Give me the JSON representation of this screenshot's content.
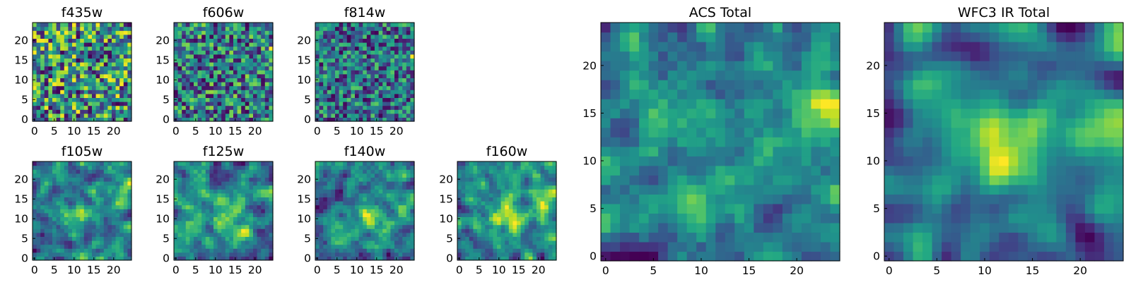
{
  "chart_data": [
    {
      "type": "heatmap",
      "title": "f435w",
      "colormap": "viridis",
      "xticks": [
        "0",
        "5",
        "10",
        "15",
        "20"
      ],
      "yticks": [
        "0",
        "5",
        "10",
        "15",
        "20"
      ],
      "xlim": [
        0,
        25
      ],
      "ylim": [
        0,
        25
      ],
      "grid_size": [
        25,
        25
      ],
      "seed": 11,
      "smooth": 0,
      "blobs": []
    },
    {
      "type": "heatmap",
      "title": "f606w",
      "colormap": "viridis",
      "xticks": [
        "0",
        "5",
        "10",
        "15",
        "20"
      ],
      "yticks": [
        "0",
        "5",
        "10",
        "15",
        "20"
      ],
      "xlim": [
        0,
        25
      ],
      "ylim": [
        0,
        25
      ],
      "grid_size": [
        25,
        25
      ],
      "seed": 23,
      "smooth": 0,
      "blobs": [
        {
          "x": 24,
          "y": 16,
          "amp": 0.45,
          "r": 1.5
        }
      ]
    },
    {
      "type": "heatmap",
      "title": "f814w",
      "colormap": "viridis",
      "xticks": [
        "0",
        "5",
        "10",
        "15",
        "20"
      ],
      "yticks": [
        "0",
        "5",
        "10",
        "15",
        "20"
      ],
      "xlim": [
        0,
        25
      ],
      "ylim": [
        0,
        25
      ],
      "grid_size": [
        25,
        25
      ],
      "seed": 37,
      "smooth": 0,
      "blobs": [
        {
          "x": 24,
          "y": 16,
          "amp": 0.4,
          "r": 1.5
        }
      ]
    },
    {
      "type": "heatmap",
      "title": "f105w",
      "colormap": "viridis",
      "xticks": [
        "0",
        "5",
        "10",
        "15",
        "20"
      ],
      "yticks": [
        "0",
        "5",
        "10",
        "15",
        "20"
      ],
      "xlim": [
        0,
        25
      ],
      "ylim": [
        0,
        25
      ],
      "grid_size": [
        25,
        25
      ],
      "seed": 41,
      "smooth": 1,
      "blobs": [
        {
          "x": 12,
          "y": 11,
          "amp": 0.35,
          "r": 3
        },
        {
          "x": 23,
          "y": 16,
          "amp": 0.4,
          "r": 2
        }
      ]
    },
    {
      "type": "heatmap",
      "title": "f125w",
      "colormap": "viridis",
      "xticks": [
        "0",
        "5",
        "10",
        "15",
        "20"
      ],
      "yticks": [
        "0",
        "5",
        "10",
        "15",
        "20"
      ],
      "xlim": [
        0,
        25
      ],
      "ylim": [
        0,
        25
      ],
      "grid_size": [
        25,
        25
      ],
      "seed": 53,
      "smooth": 1,
      "blobs": [
        {
          "x": 14,
          "y": 10,
          "amp": 0.4,
          "r": 3
        },
        {
          "x": 24,
          "y": 17,
          "amp": 0.35,
          "r": 2
        }
      ]
    },
    {
      "type": "heatmap",
      "title": "f140w",
      "colormap": "viridis",
      "xticks": [
        "0",
        "5",
        "10",
        "15",
        "20"
      ],
      "yticks": [
        "0",
        "5",
        "10",
        "15",
        "20"
      ],
      "xlim": [
        0,
        25
      ],
      "ylim": [
        0,
        25
      ],
      "grid_size": [
        25,
        25
      ],
      "seed": 67,
      "smooth": 1,
      "blobs": [
        {
          "x": 13,
          "y": 10,
          "amp": 0.4,
          "r": 3
        },
        {
          "x": 22,
          "y": 14,
          "amp": 0.35,
          "r": 2.5
        }
      ]
    },
    {
      "type": "heatmap",
      "title": "f160w",
      "colormap": "viridis",
      "xticks": [
        "0",
        "5",
        "10",
        "15",
        "20"
      ],
      "yticks": [
        "0",
        "5",
        "10",
        "15",
        "20"
      ],
      "xlim": [
        0,
        25
      ],
      "ylim": [
        0,
        25
      ],
      "grid_size": [
        25,
        25
      ],
      "seed": 79,
      "smooth": 1,
      "blobs": [
        {
          "x": 12,
          "y": 11,
          "amp": 0.5,
          "r": 3.5
        },
        {
          "x": 22,
          "y": 15,
          "amp": 0.35,
          "r": 2.5
        }
      ]
    },
    {
      "type": "heatmap",
      "title": "ACS Total",
      "colormap": "viridis",
      "xticks": [
        "0",
        "5",
        "10",
        "15",
        "20"
      ],
      "yticks": [
        "0",
        "5",
        "10",
        "15",
        "20"
      ],
      "xlim": [
        0,
        25
      ],
      "ylim": [
        0,
        25
      ],
      "grid_size": [
        25,
        25
      ],
      "seed": 97,
      "smooth": 1,
      "blobs": [
        {
          "x": 23,
          "y": 16,
          "amp": 0.35,
          "r": 2
        },
        {
          "x": 5,
          "y": 16,
          "amp": 0.2,
          "r": 2
        }
      ]
    },
    {
      "type": "heatmap",
      "title": "WFC3 IR Total",
      "colormap": "viridis",
      "xticks": [
        "0",
        "5",
        "10",
        "15",
        "20"
      ],
      "yticks": [
        "0",
        "5",
        "10",
        "15",
        "20"
      ],
      "xlim": [
        0,
        25
      ],
      "ylim": [
        0,
        25
      ],
      "grid_size": [
        25,
        25
      ],
      "seed": 113,
      "smooth": 2,
      "blobs": [
        {
          "x": 12,
          "y": 11,
          "amp": 0.55,
          "r": 3.5
        },
        {
          "x": 23,
          "y": 15,
          "amp": 0.45,
          "r": 2.5
        },
        {
          "x": 5,
          "y": 16,
          "amp": 0.25,
          "r": 2.5
        }
      ]
    }
  ]
}
